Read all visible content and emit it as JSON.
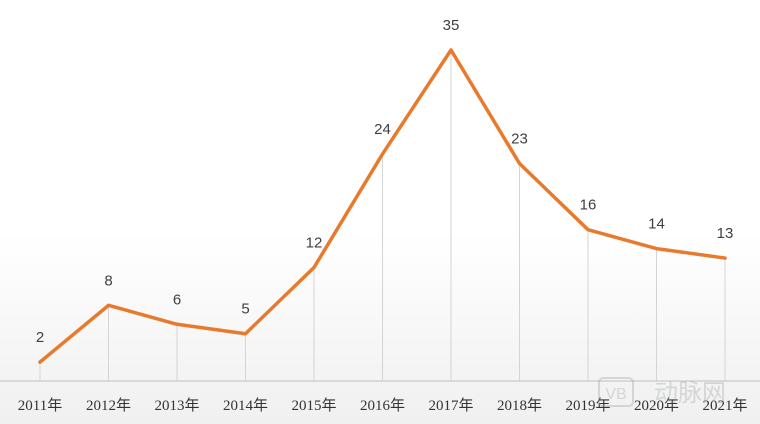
{
  "chart_data": {
    "type": "line",
    "categories": [
      "2011年",
      "2012年",
      "2013年",
      "2014年",
      "2015年",
      "2016年",
      "2017年",
      "2018年",
      "2019年",
      "2020年",
      "2021年"
    ],
    "series": [
      {
        "values": [
          2,
          8,
          6,
          5,
          12,
          24,
          35,
          23,
          16,
          14,
          13
        ]
      }
    ],
    "title": "",
    "xlabel": "",
    "ylabel": "",
    "ylim": [
      0,
      35
    ],
    "grid": false,
    "legend": "none",
    "line_color": "#E87A2E"
  },
  "watermark": {
    "text": "动脉网",
    "mark": "VB"
  }
}
